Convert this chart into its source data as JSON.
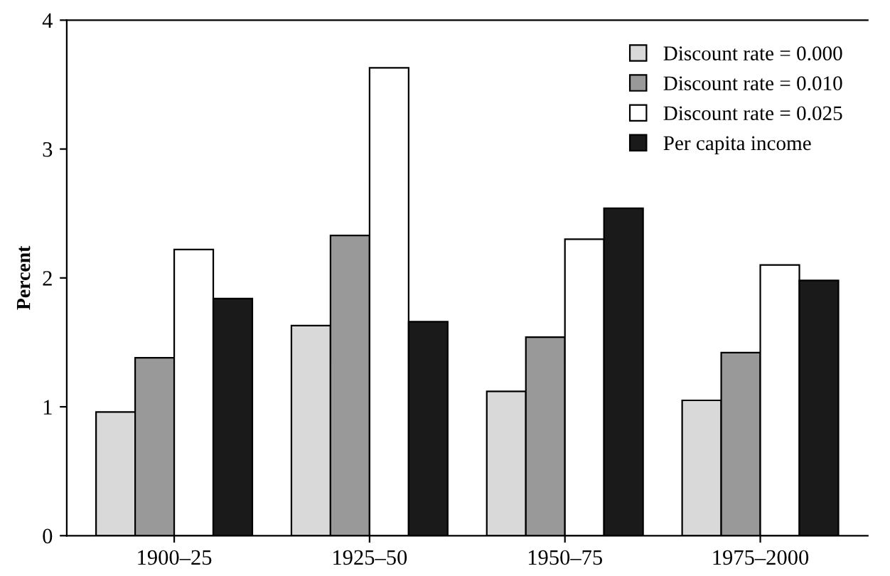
{
  "chart_data": {
    "type": "bar",
    "ylabel": "Percent",
    "categories": [
      "1900–25",
      "1925–50",
      "1950–75",
      "1975–2000"
    ],
    "series": [
      {
        "name": "Discount rate = 0.000",
        "color": "#d9d9d9",
        "values": [
          0.96,
          1.63,
          1.12,
          1.05
        ]
      },
      {
        "name": "Discount rate = 0.010",
        "color": "#999999",
        "values": [
          1.38,
          2.33,
          1.54,
          1.42
        ]
      },
      {
        "name": "Discount rate = 0.025",
        "color": "#ffffff",
        "values": [
          2.22,
          3.63,
          2.3,
          2.1
        ]
      },
      {
        "name": "Per capita income",
        "color": "#1a1a1a",
        "values": [
          1.84,
          1.66,
          2.54,
          1.98
        ]
      }
    ],
    "ylim": [
      0,
      4
    ],
    "yticks": [
      0,
      1,
      2,
      3,
      4
    ],
    "grid": false,
    "legend": "top right"
  }
}
